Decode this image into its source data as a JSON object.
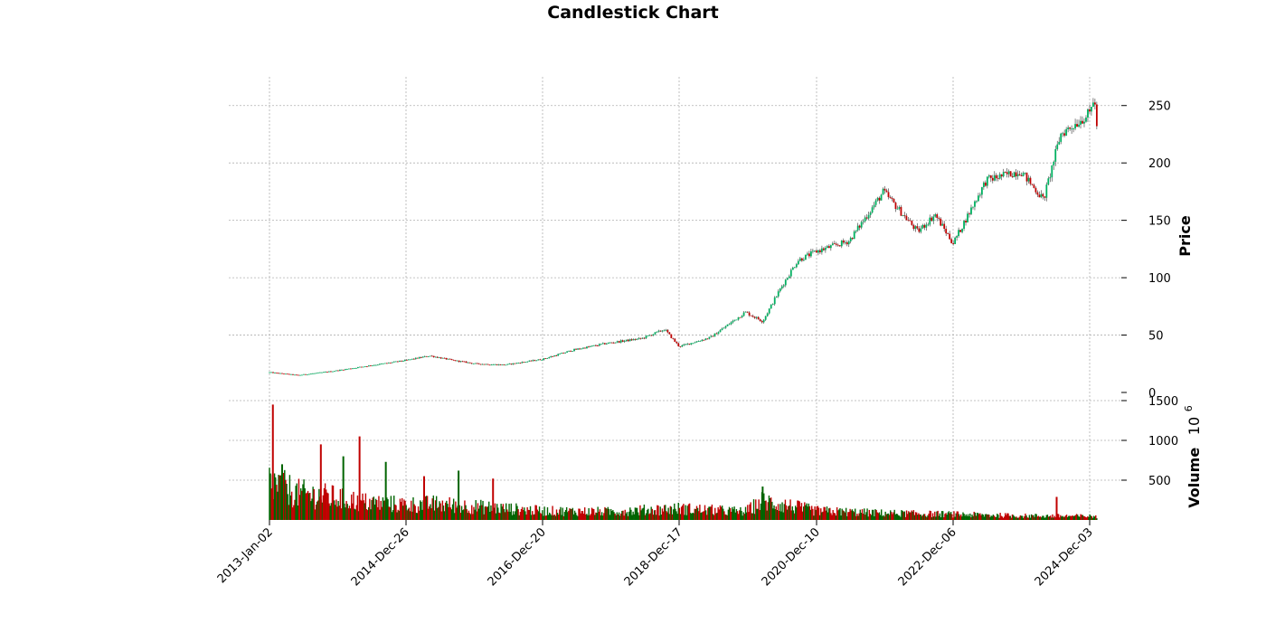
{
  "chart_data": {
    "type": "candlestick",
    "title": "Candlestick Chart",
    "up_color": "#00b060",
    "down_color": "#c00000",
    "volume_up_color": "#006400",
    "volume_down_color": "#c00000",
    "price_panel": {
      "ylabel": "Price",
      "ylim": [
        0,
        275
      ],
      "yticks": [
        0,
        50,
        100,
        150,
        200,
        250
      ],
      "ytick_labels": [
        "0",
        "50",
        "100",
        "150",
        "200",
        "250"
      ],
      "close_series": [
        {
          "date": "2013-01-02",
          "close": 17.5
        },
        {
          "date": "2013-06-01",
          "close": 15.0
        },
        {
          "date": "2013-12-01",
          "close": 18.5
        },
        {
          "date": "2014-06-01",
          "close": 23.0
        },
        {
          "date": "2014-12-26",
          "close": 28.0
        },
        {
          "date": "2015-05-01",
          "close": 32.0
        },
        {
          "date": "2015-09-01",
          "close": 28.0
        },
        {
          "date": "2016-01-01",
          "close": 25.0
        },
        {
          "date": "2016-06-01",
          "close": 24.0
        },
        {
          "date": "2016-12-20",
          "close": 29.0
        },
        {
          "date": "2017-06-01",
          "close": 37.0
        },
        {
          "date": "2017-12-01",
          "close": 43.0
        },
        {
          "date": "2018-06-01",
          "close": 47.0
        },
        {
          "date": "2018-10-01",
          "close": 55.0
        },
        {
          "date": "2018-12-17",
          "close": 40.0
        },
        {
          "date": "2019-06-01",
          "close": 48.0
        },
        {
          "date": "2019-12-01",
          "close": 70.0
        },
        {
          "date": "2020-03-01",
          "close": 62.0
        },
        {
          "date": "2020-06-01",
          "close": 90.0
        },
        {
          "date": "2020-09-01",
          "close": 115.0
        },
        {
          "date": "2020-12-10",
          "close": 123.0
        },
        {
          "date": "2021-06-01",
          "close": 132.0
        },
        {
          "date": "2021-12-01",
          "close": 175.0
        },
        {
          "date": "2022-06-01",
          "close": 140.0
        },
        {
          "date": "2022-09-01",
          "close": 155.0
        },
        {
          "date": "2022-12-06",
          "close": 130.0
        },
        {
          "date": "2023-06-01",
          "close": 185.0
        },
        {
          "date": "2023-12-01",
          "close": 193.0
        },
        {
          "date": "2024-04-01",
          "close": 168.0
        },
        {
          "date": "2024-07-01",
          "close": 225.0
        },
        {
          "date": "2024-12-03",
          "close": 243.0
        },
        {
          "date": "2024-12-26",
          "close": 258.0
        },
        {
          "date": "2025-01-10",
          "close": 233.0
        }
      ]
    },
    "volume_panel": {
      "ylabel": "Volume",
      "ylabel_exponent": "10",
      "ylabel_exponent_power": "6",
      "ylim": [
        0,
        1500
      ],
      "yticks": [
        500,
        1000,
        1500
      ],
      "ytick_labels": [
        "500",
        "1000",
        "1500"
      ],
      "volume_series": [
        {
          "date": "2013-01-02",
          "volume": 500
        },
        {
          "date": "2013-06-01",
          "volume": 350
        },
        {
          "date": "2013-12-01",
          "volume": 300
        },
        {
          "date": "2014-06-01",
          "volume": 230
        },
        {
          "date": "2014-12-26",
          "volume": 200
        },
        {
          "date": "2015-06-01",
          "volume": 210
        },
        {
          "date": "2015-12-01",
          "volume": 180
        },
        {
          "date": "2016-12-20",
          "volume": 120
        },
        {
          "date": "2017-12-01",
          "volume": 110
        },
        {
          "date": "2018-12-17",
          "volume": 150
        },
        {
          "date": "2019-12-01",
          "volume": 110
        },
        {
          "date": "2020-03-01",
          "volume": 250
        },
        {
          "date": "2020-12-10",
          "volume": 120
        },
        {
          "date": "2021-12-01",
          "volume": 90
        },
        {
          "date": "2022-12-06",
          "volume": 75
        },
        {
          "date": "2023-12-01",
          "volume": 55
        },
        {
          "date": "2024-12-03",
          "volume": 50
        }
      ],
      "volume_spikes": [
        {
          "date": "2013-01-20",
          "volume": 1450
        },
        {
          "date": "2013-03-10",
          "volume": 700
        },
        {
          "date": "2013-10-01",
          "volume": 950
        },
        {
          "date": "2014-01-28",
          "volume": 800
        },
        {
          "date": "2014-04-24",
          "volume": 1050
        },
        {
          "date": "2014-09-10",
          "volume": 730
        },
        {
          "date": "2015-04-01",
          "volume": 550
        },
        {
          "date": "2015-10-01",
          "volume": 620
        },
        {
          "date": "2016-04-01",
          "volume": 520
        },
        {
          "date": "2020-03-01",
          "volume": 420
        },
        {
          "date": "2024-06-10",
          "volume": 290
        }
      ]
    },
    "x_axis": {
      "start": "2013-01-02",
      "end": "2025-01-15",
      "ticks": [
        "2013-01-02",
        "2014-12-26",
        "2016-12-20",
        "2018-12-17",
        "2020-12-10",
        "2022-12-06",
        "2024-12-03"
      ],
      "tick_labels": [
        "2013-Jan-02",
        "2014-Dec-26",
        "2016-Dec-20",
        "2018-Dec-17",
        "2020-Dec-10",
        "2022-Dec-06",
        "2024-Dec-03"
      ]
    },
    "grid": true
  }
}
